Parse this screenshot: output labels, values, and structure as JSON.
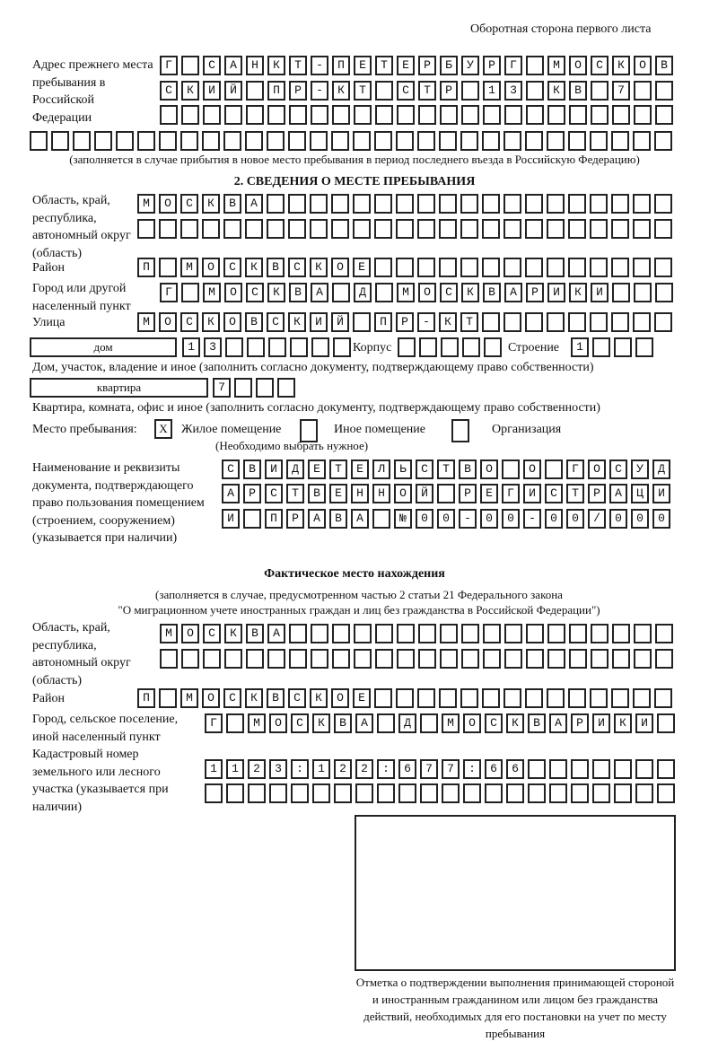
{
  "header": "Оборотная сторона первого листа",
  "prev_address": {
    "label": "Адрес прежнего места пребывания в Российской Федерации",
    "rows": [
      "Г САНКТ-ПЕТЕРБУРГ МОСКОВ",
      "СКИЙ ПР-КТ СТР 13 КВ 7",
      "",
      ""
    ],
    "note": "(заполняется в случае прибытия в новое место пребывания в период последнего въезда в Российскую Федерацию)"
  },
  "section2": {
    "title": "2. СВЕДЕНИЯ О МЕСТЕ ПРЕБЫВАНИЯ",
    "region_label": "Область, край, республика, автономный округ (область)",
    "region_rows": [
      "МОСКВА",
      ""
    ],
    "district_label": "Район",
    "district": "П МОСКВСКОЕ",
    "city_label": "Город или другой населенный пункт",
    "city": "Г МОСКВА Д МОСКВАРИКИ",
    "street_label": "Улица",
    "street": "МОСКОВСКИЙ ПР-КТ",
    "house_type": "дом",
    "house": "13",
    "korpus_label": "Корпус",
    "korpus": "",
    "stroenie_label": "Строение",
    "stroenie": "1",
    "house_note": "Дом, участок, владение и иное (заполнить согласно документу, подтверждающему право собственности)",
    "flat_type": "квартира",
    "flat": "7",
    "flat_note": "Квартира, комната, офис и иное (заполнить согласно документу, подтверждающему право собственности)",
    "stay_label": "Место пребывания:",
    "opt1_mark": "X",
    "opt1": "Жилое помещение",
    "opt2": "Иное помещение",
    "opt3": "Организация",
    "choose_note": "(Необходимо выбрать нужное)",
    "doc_label": "Наименование и реквизиты документа, подтверждающего право пользования помещением (строением, сооружением) (указывается при наличии)",
    "doc_rows": [
      "СВИДЕТЕЛЬСТВО О ГОСУД",
      "АРСТВЕННОЙ РЕГИСТРАЦИ",
      "И ПРАВА №00-00-00/000"
    ]
  },
  "actual": {
    "title": "Фактическое место нахождения",
    "note1": "(заполняется в случае, предусмотренном частью 2 статьи 21 Федерального закона",
    "note2": "\"О миграционном учете иностранных граждан и лиц без гражданства в Российской Федерации\")",
    "region_label": "Область, край, республика, автономный округ (область)",
    "region_rows": [
      "МОСКВА",
      ""
    ],
    "district_label": "Район",
    "district": "П МОСКВСКОЕ",
    "city_label": "Город, сельское поселение, иной населенный пункт",
    "city": "Г МОСКВА Д МОСКВАРИКИ",
    "cadastre_label": "Кадастровый номер земельного или лесного участка (указывается при наличии)",
    "cadastre_rows": [
      "1123:122:677:66",
      ""
    ]
  },
  "stamp_caption": "Отметка о подтверждении выполнения принимающей стороной и иностранным гражданином или лицом без гражданства действий, необходимых для его постановки на учет по месту пребывания"
}
